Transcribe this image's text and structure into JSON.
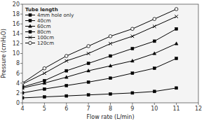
{
  "chart_data": {
    "type": "line",
    "x": [
      4,
      5,
      6,
      7,
      8,
      9,
      10,
      11
    ],
    "series": [
      {
        "name": "4mm hole only",
        "color": "black",
        "marker": "square",
        "values": [
          1.0,
          1.2,
          1.4,
          1.6,
          1.8,
          2.0,
          2.3,
          3.0
        ]
      },
      {
        "name": "40cm",
        "color": "black",
        "marker": "square",
        "values": [
          2.0,
          2.8,
          3.5,
          4.2,
          5.0,
          6.0,
          7.0,
          9.0
        ]
      },
      {
        "name": "60cm",
        "color": "black",
        "marker": "triangle",
        "values": [
          3.0,
          4.0,
          5.2,
          6.5,
          7.5,
          8.5,
          10.0,
          12.0
        ]
      },
      {
        "name": "80cm",
        "color": "black",
        "marker": "square",
        "values": [
          3.2,
          4.5,
          6.5,
          8.0,
          9.5,
          11.0,
          12.5,
          15.0
        ]
      },
      {
        "name": "100cm",
        "color": "black",
        "marker": "x",
        "values": [
          3.8,
          6.0,
          8.5,
          10.0,
          12.0,
          13.5,
          15.5,
          17.5
        ]
      },
      {
        "name": "120cm",
        "color": "black",
        "marker": "open-circle",
        "values": [
          4.0,
          7.0,
          9.5,
          11.5,
          13.5,
          15.0,
          17.0,
          19.0
        ]
      }
    ],
    "x_label": "Flow rate (L/min)",
    "y_label": "Pressure (cmH₂O)",
    "legend_title": "Tube length",
    "xlim": [
      4,
      12
    ],
    "ylim": [
      0,
      20
    ],
    "xticks": [
      4,
      5,
      6,
      7,
      8,
      9,
      10,
      11,
      12
    ],
    "yticks": [
      0,
      2,
      4,
      6,
      8,
      10,
      12,
      14,
      16,
      18,
      20
    ],
    "grid": false,
    "legend": "upper-left"
  }
}
